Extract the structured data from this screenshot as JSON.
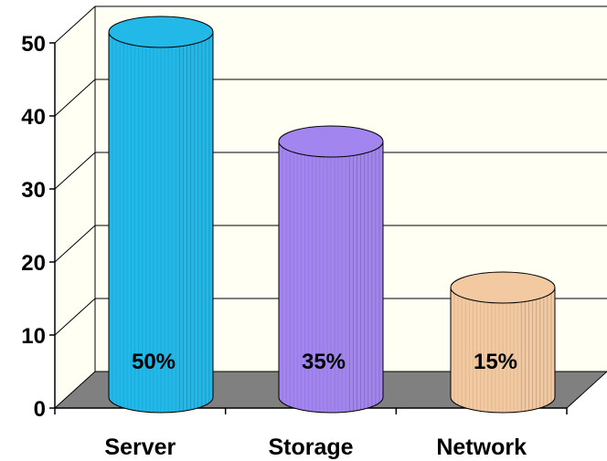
{
  "chart_data": {
    "type": "bar",
    "style": "3d-cylinder",
    "categories": [
      "Server",
      "Storage",
      "Network"
    ],
    "values": [
      50,
      35,
      15
    ],
    "data_labels": [
      "50%",
      "35%",
      "15%"
    ],
    "colors": [
      "#22b8e8",
      "#a285ee",
      "#f2c9a0"
    ],
    "ylim": [
      0,
      50
    ],
    "yticks": [
      "0",
      "10",
      "20",
      "30",
      "40",
      "50"
    ],
    "grid": true,
    "legend": "none",
    "title": "",
    "xlabel": "",
    "ylabel": ""
  }
}
